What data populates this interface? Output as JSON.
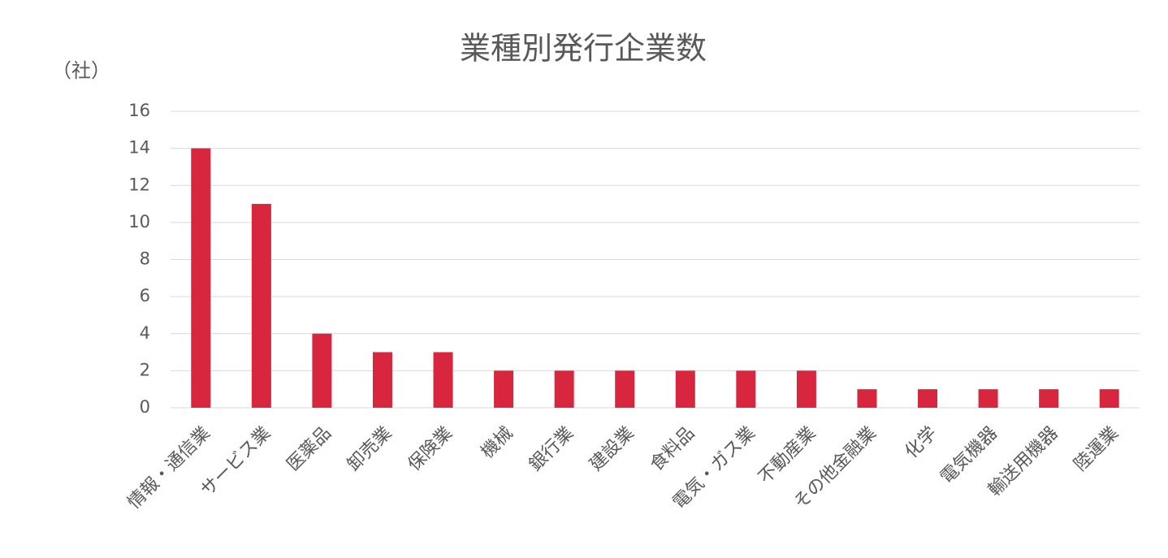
{
  "chart_data": {
    "type": "bar",
    "title": "業種別発行企業数",
    "y_label": "（社）",
    "categories": [
      "情報・通信業",
      "サービス業",
      "医薬品",
      "卸売業",
      "保険業",
      "機械",
      "銀行業",
      "建設業",
      "食料品",
      "電気・ガス業",
      "不動産業",
      "その他金融業",
      "化学",
      "電気機器",
      "輸送用機器",
      "陸運業"
    ],
    "values": [
      14,
      11,
      4,
      3,
      3,
      2,
      2,
      2,
      2,
      2,
      2,
      1,
      1,
      1,
      1,
      1
    ],
    "color": "#d7263d",
    "ylim": [
      0,
      16
    ],
    "yticks": [
      0,
      2,
      4,
      6,
      8,
      10,
      12,
      14,
      16
    ],
    "grid": true
  }
}
